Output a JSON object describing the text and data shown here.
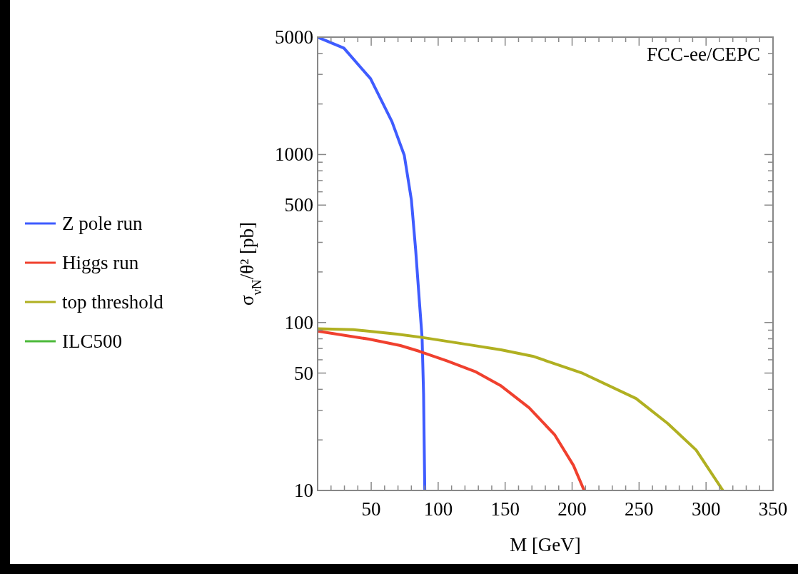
{
  "chart_data": {
    "type": "line",
    "xlabel": "M [GeV]",
    "ylabel": "σ$_{νN}$/θ² [pb]",
    "annotations": [
      "FCC-ee/CEPC"
    ],
    "log": "y",
    "xlim": [
      10,
      350
    ],
    "ylim": [
      10,
      5000
    ],
    "xticks": [
      {
        "value": 20,
        "label": null
      },
      {
        "value": 30,
        "label": null
      },
      {
        "value": 40,
        "label": null
      },
      50,
      {
        "value": 60,
        "label": null
      },
      {
        "value": 70,
        "label": null
      },
      {
        "value": 80,
        "label": null
      },
      {
        "value": 90,
        "label": null
      },
      100,
      {
        "value": 110,
        "label": null
      },
      {
        "value": 120,
        "label": null
      },
      {
        "value": 130,
        "label": null
      },
      {
        "value": 140,
        "label": null
      },
      150,
      {
        "value": 160,
        "label": null
      },
      {
        "value": 170,
        "label": null
      },
      {
        "value": 180,
        "label": null
      },
      {
        "value": 190,
        "label": null
      },
      200,
      {
        "value": 210,
        "label": null
      },
      {
        "value": 220,
        "label": null
      },
      {
        "value": 230,
        "label": null
      },
      {
        "value": 240,
        "label": null
      },
      250,
      {
        "value": 260,
        "label": null
      },
      {
        "value": 270,
        "label": null
      },
      {
        "value": 280,
        "label": null
      },
      {
        "value": 290,
        "label": null
      },
      300,
      {
        "value": 310,
        "label": null
      },
      {
        "value": 320,
        "label": null
      },
      {
        "value": 330,
        "label": null
      },
      {
        "value": 340,
        "label": null
      },
      350
    ],
    "yticks": [
      10,
      {
        "value": 20,
        "label": null
      },
      {
        "value": 30,
        "label": null
      },
      {
        "value": 40,
        "label": null
      },
      50,
      {
        "value": 60,
        "label": null
      },
      {
        "value": 70,
        "label": null
      },
      {
        "value": 80,
        "label": null
      },
      {
        "value": 90,
        "label": null
      },
      100,
      {
        "value": 200,
        "label": null
      },
      {
        "value": 300,
        "label": null
      },
      {
        "value": 400,
        "label": null
      },
      500,
      {
        "value": 600,
        "label": null
      },
      {
        "value": 700,
        "label": null
      },
      {
        "value": 800,
        "label": null
      },
      {
        "value": 900,
        "label": null
      },
      1000,
      {
        "value": 2000,
        "label": null
      },
      {
        "value": 3000,
        "label": null
      },
      {
        "value": 4000,
        "label": null
      },
      5000
    ],
    "legend": "left",
    "line_style": "solid",
    "grid": false,
    "series": [
      {
        "name": "Z pole run",
        "color": "#3f5cff",
        "x": [
          10,
          29.6,
          49.5,
          65.5,
          74.7,
          80,
          83.2,
          85.9,
          88,
          89.1,
          90
        ],
        "values": [
          5000,
          4300,
          2830,
          1570,
          990,
          537,
          270,
          136,
          81,
          37.5,
          10
        ]
      },
      {
        "name": "Higgs run",
        "color": "#f0402e",
        "x": [
          10.7,
          48.4,
          71.8,
          85.9,
          106.8,
          128.2,
          147,
          167.9,
          186.9,
          201,
          209
        ],
        "values": [
          88.6,
          79.6,
          72.9,
          67.4,
          59,
          50.8,
          41.9,
          31.1,
          21.5,
          14.1,
          10
        ]
      },
      {
        "name": "top threshold",
        "color": "#b0b021",
        "x": [
          10.7,
          36.6,
          69.3,
          88,
          125.6,
          147,
          170.6,
          208,
          247.7,
          271.3,
          292.6,
          312.6
        ],
        "values": [
          91.8,
          90.7,
          85.3,
          81.5,
          73.2,
          68.7,
          63,
          49.8,
          35.3,
          25.1,
          17.4,
          10
        ]
      },
      {
        "name": "ILC500",
        "color": "#4cb93a"
      }
    ]
  }
}
